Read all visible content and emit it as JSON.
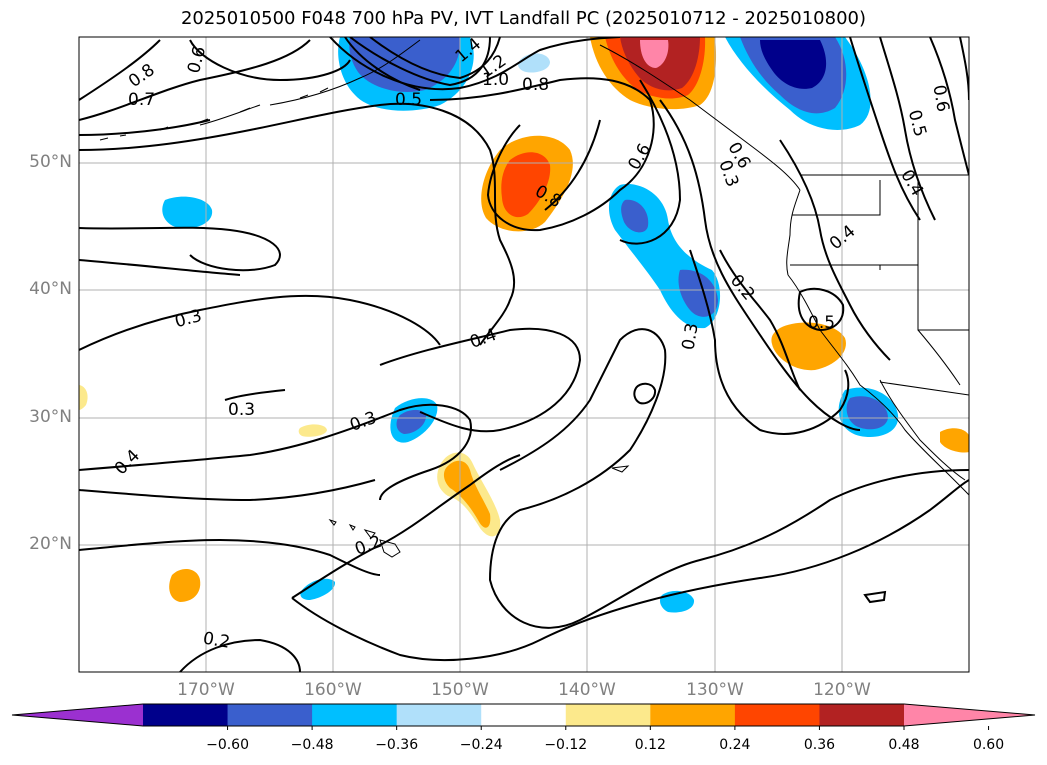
{
  "title": "2025010500 F048 700 hPa PV, IVT Landfall PC (2025010712 - 2025010800)",
  "lat_labels": [
    "50°N",
    "40°N",
    "30°N",
    "20°N"
  ],
  "lon_labels": [
    "170°W",
    "160°W",
    "150°W",
    "140°W",
    "130°W",
    "120°W"
  ],
  "colorbar": {
    "tick_labels": [
      "−0.60",
      "−0.48",
      "−0.36",
      "−0.24",
      "−0.12",
      "0.12",
      "0.24",
      "0.36",
      "0.48",
      "0.60"
    ],
    "colors": [
      "#9b30d0",
      "#00008b",
      "#3a5fcd",
      "#00bfff",
      "#b0e0fa",
      "#ffffff",
      "#fce98c",
      "#ffa500",
      "#ff4500",
      "#b22222",
      "#ff85a8"
    ]
  },
  "contour_labels": [
    "0.8",
    "0.7",
    "0.6",
    "1.4",
    "1.2",
    "1.0",
    "0.8",
    "0.5",
    "0.8",
    "0.6",
    "0.6",
    "0.3",
    "0.5",
    "0.6",
    "0.4",
    "0.4",
    "0.3",
    "0.3",
    "0.4",
    "0.3",
    "0.2",
    "0.5",
    "0.3",
    "0.4",
    "0.2",
    "0.2"
  ]
}
